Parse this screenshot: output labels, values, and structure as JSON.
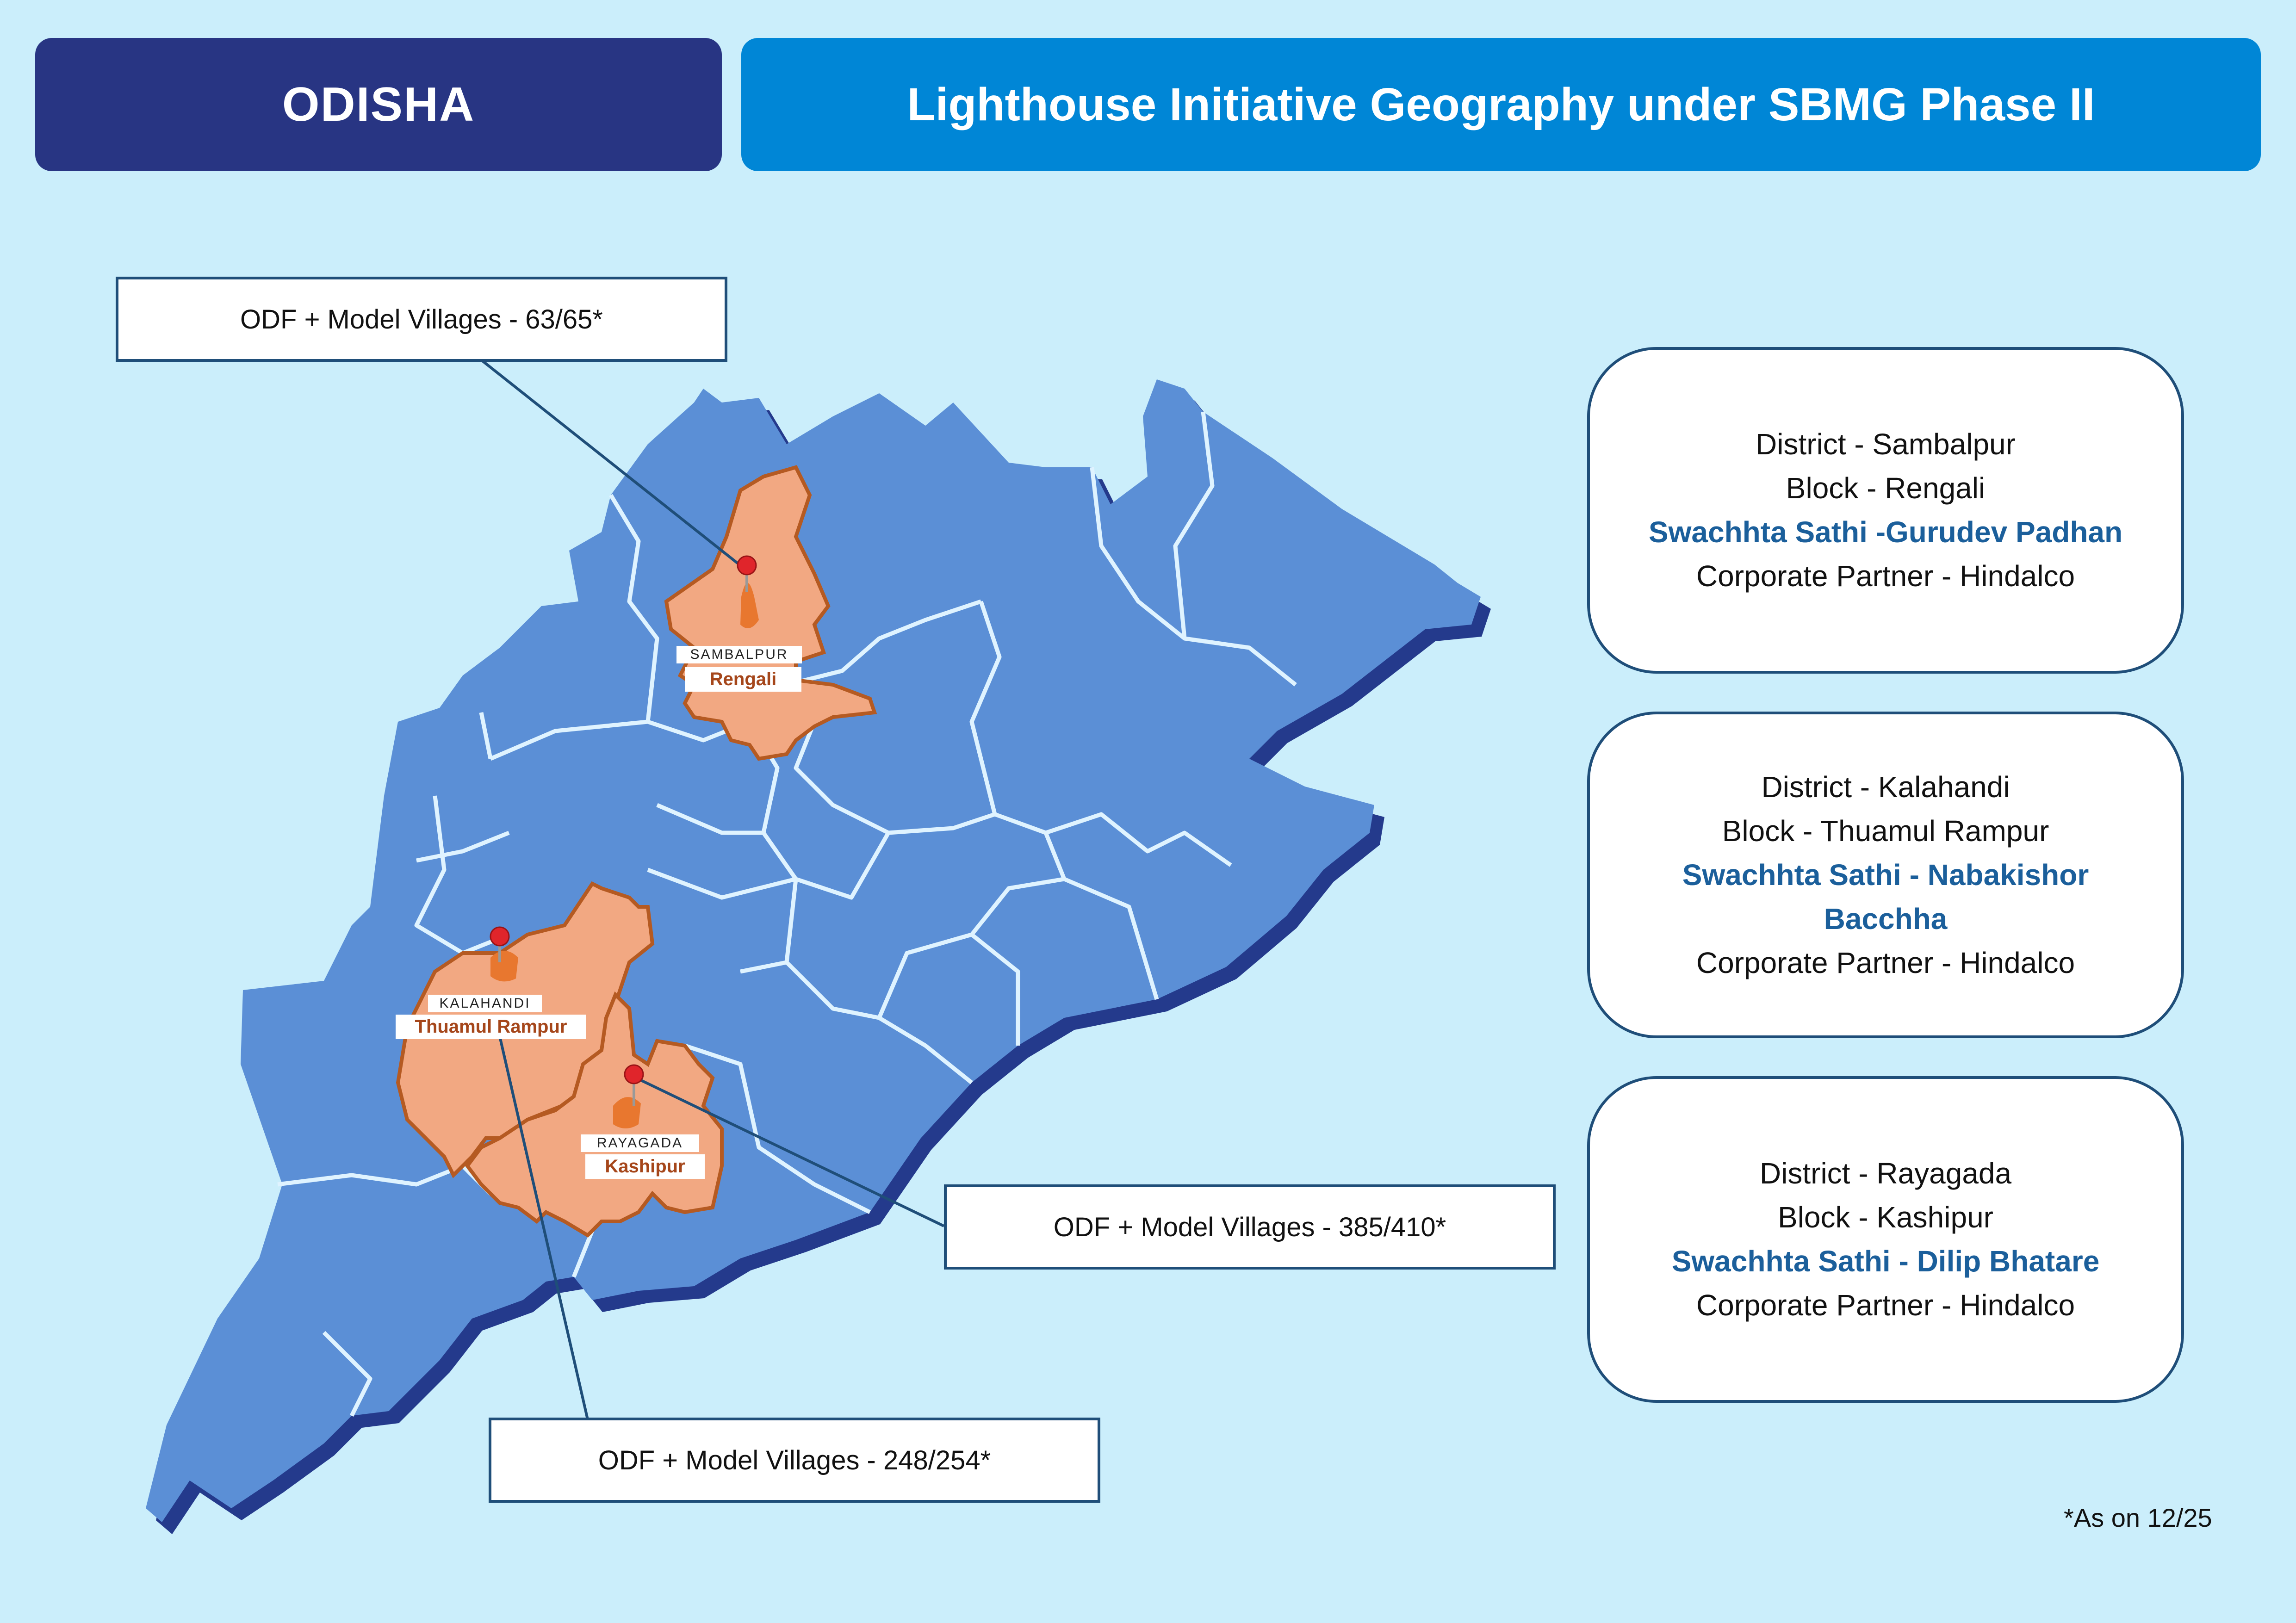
{
  "header": {
    "state": "ODISHA",
    "title": "Lighthouse Initiative Geography under SBMG Phase II"
  },
  "callouts": [
    {
      "text": "ODF + Model Villages - 63/65*"
    },
    {
      "text": "ODF + Model Villages - 385/410*"
    },
    {
      "text": "ODF + Model Villages - 248/254*"
    }
  ],
  "map_labels": [
    {
      "district": "SAMBALPUR",
      "block": "Rengali"
    },
    {
      "district": "KALAHANDI",
      "block": "Thuamul Rampur"
    },
    {
      "district": "RAYAGADA",
      "block": "Kashipur"
    }
  ],
  "cards": [
    {
      "district": "District - Sambalpur",
      "block": "Block - Rengali",
      "sathi": "Swachhta Sathi -Gurudev Padhan",
      "partner": "Corporate Partner - Hindalco"
    },
    {
      "district": "District - Kalahandi",
      "block": "Block - Thuamul Rampur",
      "sathi": "Swachhta Sathi - Nabakishor Bacchha",
      "partner": "Corporate Partner - Hindalco"
    },
    {
      "district": "District - Rayagada",
      "block": "Block - Kashipur",
      "sathi": "Swachhta Sathi - Dilip Bhatare",
      "partner": "Corporate Partner - Hindalco"
    }
  ],
  "footnote": "*As on 12/25",
  "colors": {
    "background": "#cbeefb",
    "state_fill": "#5b8fd6",
    "state_shadow": "#243a8c",
    "highlight_fill": "#f2a882",
    "highlight_stroke": "#b55a22",
    "district_border": "#dff3ff",
    "pin": "#e0252b",
    "leader_line": "#1f4e79"
  }
}
